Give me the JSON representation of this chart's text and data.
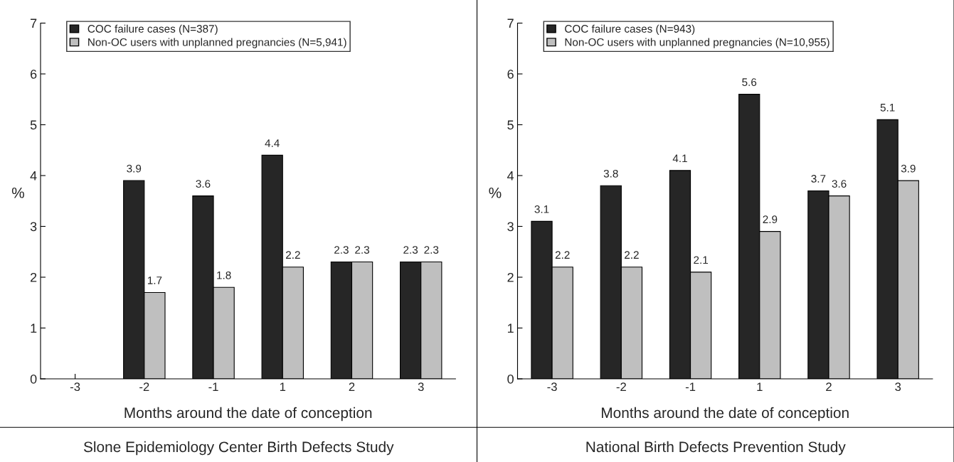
{
  "chart_data": [
    {
      "type": "bar",
      "title": "Slone Epidemiology Center Birth Defects Study",
      "xlabel": "Months around the date of conception",
      "ylabel": "%",
      "categories": [
        "-3",
        "-2",
        "-1",
        "1",
        "2",
        "3"
      ],
      "series": [
        {
          "name": "COC failure cases (N=387)",
          "color": "#262626",
          "values": [
            null,
            3.9,
            3.6,
            4.4,
            2.3,
            2.3
          ]
        },
        {
          "name": "Non-OC users with unplanned pregnancies (N=5,941)",
          "color": "#bfbfbf",
          "values": [
            null,
            1.7,
            1.8,
            2.2,
            2.3,
            2.3
          ]
        }
      ],
      "ylim": [
        0,
        7
      ],
      "yticks": [
        0,
        1,
        2,
        3,
        4,
        5,
        6,
        7
      ],
      "grid": false,
      "legend": "top left",
      "data_labels": true
    },
    {
      "type": "bar",
      "title": "National Birth Defects Prevention Study",
      "xlabel": "Months around the date of conception",
      "ylabel": "%",
      "categories": [
        "-3",
        "-2",
        "-1",
        "1",
        "2",
        "3"
      ],
      "series": [
        {
          "name": "COC failure cases (N=943)",
          "color": "#262626",
          "values": [
            3.1,
            3.8,
            4.1,
            5.6,
            3.7,
            5.1
          ]
        },
        {
          "name": "Non-OC users with unplanned pregnancies (N=10,955)",
          "color": "#bfbfbf",
          "values": [
            2.2,
            2.2,
            2.1,
            2.9,
            3.6,
            3.9
          ]
        }
      ],
      "ylim": [
        0,
        7
      ],
      "yticks": [
        0,
        1,
        2,
        3,
        4,
        5,
        6,
        7
      ],
      "grid": false,
      "legend": "top left",
      "data_labels": true
    }
  ]
}
